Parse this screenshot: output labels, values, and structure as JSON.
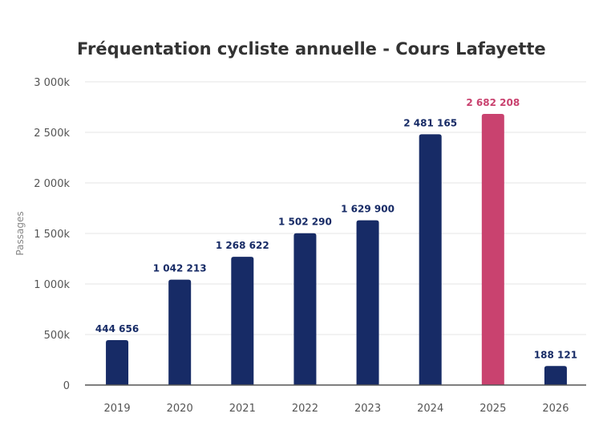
{
  "chart_data": {
    "type": "bar",
    "title": "Fréquentation cycliste annuelle - Cours Lafayette",
    "xlabel": "",
    "ylabel": "Passages",
    "categories": [
      "2019",
      "2020",
      "2021",
      "2022",
      "2023",
      "2024",
      "2025",
      "2026"
    ],
    "values": [
      444656,
      1042213,
      1268622,
      1502290,
      1629900,
      2481165,
      2682208,
      188121
    ],
    "data_labels": [
      "444 656",
      "1 042 213",
      "1 268 622",
      "1 502 290",
      "1 629 900",
      "2 481 165",
      "2 682 208",
      "188 121"
    ],
    "ylim": [
      0,
      3000000
    ],
    "yticks": [
      0,
      500000,
      1000000,
      1500000,
      2000000,
      2500000,
      3000000
    ],
    "ytick_labels": [
      "0",
      "500k",
      "1 000k",
      "1 500k",
      "2 000k",
      "2 500k",
      "3 000k"
    ],
    "grid": true,
    "colors": {
      "default": "#172b66",
      "highlight": "#c9426f",
      "highlight_category": "2025",
      "grid": "#e6e6e6",
      "axis": "#555555"
    }
  }
}
